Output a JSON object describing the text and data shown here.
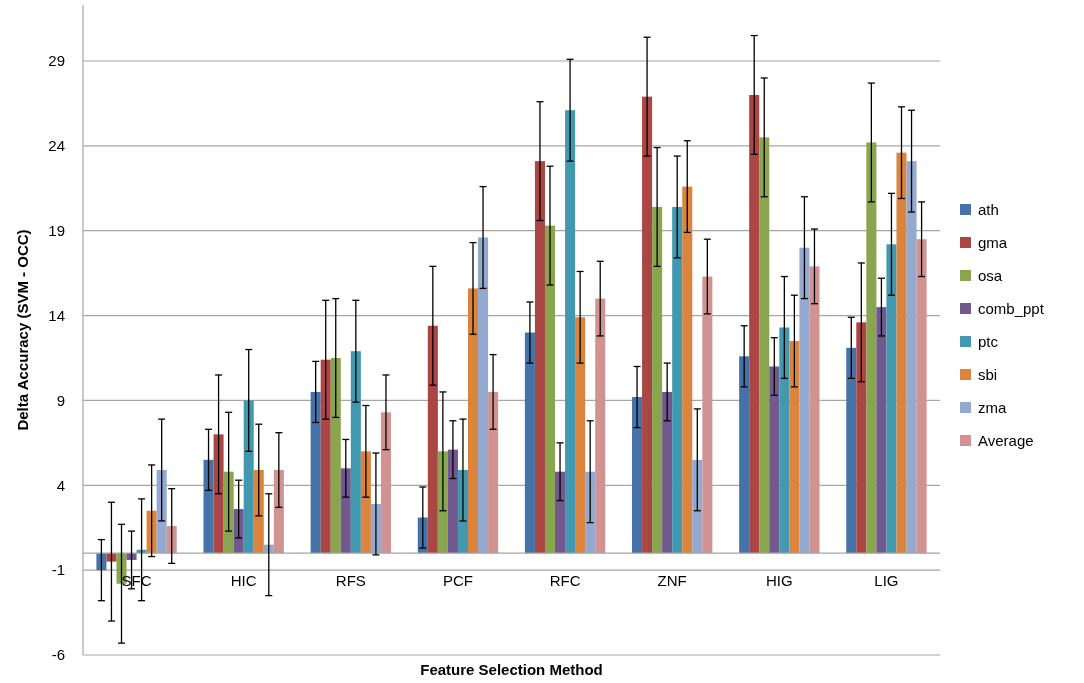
{
  "chart_data": {
    "type": "bar",
    "xlabel": "Feature Selection Method",
    "ylabel": "Delta Accuracy (SVM - OCC)",
    "categories": [
      "SFC",
      "HIC",
      "RFS",
      "PCF",
      "RFC",
      "ZNF",
      "HIG",
      "LIG"
    ],
    "series": [
      {
        "name": "ath",
        "color": "#4572a7",
        "values": [
          -1.0,
          5.5,
          9.5,
          2.1,
          13.0,
          9.2,
          11.6,
          12.1
        ],
        "errors": [
          1.8,
          1.8,
          1.8,
          1.8,
          1.8,
          1.8,
          1.8,
          1.8
        ]
      },
      {
        "name": "gma",
        "color": "#aa4643",
        "values": [
          -0.5,
          7.0,
          11.4,
          13.4,
          23.1,
          26.9,
          27.0,
          13.6
        ],
        "errors": [
          3.5,
          3.5,
          3.5,
          3.5,
          3.5,
          3.5,
          3.5,
          3.5
        ]
      },
      {
        "name": "osa",
        "color": "#89a54e",
        "values": [
          -1.8,
          4.8,
          11.5,
          6.0,
          19.3,
          20.4,
          24.5,
          24.2
        ],
        "errors": [
          3.5,
          3.5,
          3.5,
          3.5,
          3.5,
          3.5,
          3.5,
          3.5
        ]
      },
      {
        "name": "comb_ppt",
        "color": "#71588f",
        "values": [
          -0.4,
          2.6,
          5.0,
          6.1,
          4.8,
          9.5,
          11.0,
          14.5
        ],
        "errors": [
          1.7,
          1.7,
          1.7,
          1.7,
          1.7,
          1.7,
          1.7,
          1.7
        ]
      },
      {
        "name": "ptc",
        "color": "#4198af",
        "values": [
          0.2,
          9.0,
          11.9,
          4.9,
          26.1,
          20.4,
          13.3,
          18.2
        ],
        "errors": [
          3.0,
          3.0,
          3.0,
          3.0,
          3.0,
          3.0,
          3.0,
          3.0
        ]
      },
      {
        "name": "sbi",
        "color": "#db843d",
        "values": [
          2.5,
          4.9,
          6.0,
          15.6,
          13.9,
          21.6,
          12.5,
          23.6
        ],
        "errors": [
          2.7,
          2.7,
          2.7,
          2.7,
          2.7,
          2.7,
          2.7,
          2.7
        ]
      },
      {
        "name": "zma",
        "color": "#93a9cf",
        "values": [
          4.9,
          0.5,
          2.9,
          18.6,
          4.8,
          5.5,
          18.0,
          23.1
        ],
        "errors": [
          3.0,
          3.0,
          3.0,
          3.0,
          3.0,
          3.0,
          3.0,
          3.0
        ]
      },
      {
        "name": "Average",
        "color": "#d19392",
        "values": [
          1.6,
          4.9,
          8.3,
          9.5,
          15.0,
          16.3,
          16.9,
          18.5
        ],
        "errors": [
          2.2,
          2.2,
          2.2,
          2.2,
          2.2,
          2.2,
          2.2,
          2.2
        ]
      }
    ],
    "ylim": [
      -6,
      32.3
    ],
    "yticks": [
      -6,
      -1,
      4,
      9,
      14,
      19,
      24,
      29
    ],
    "grid": "y",
    "legend": "right"
  }
}
